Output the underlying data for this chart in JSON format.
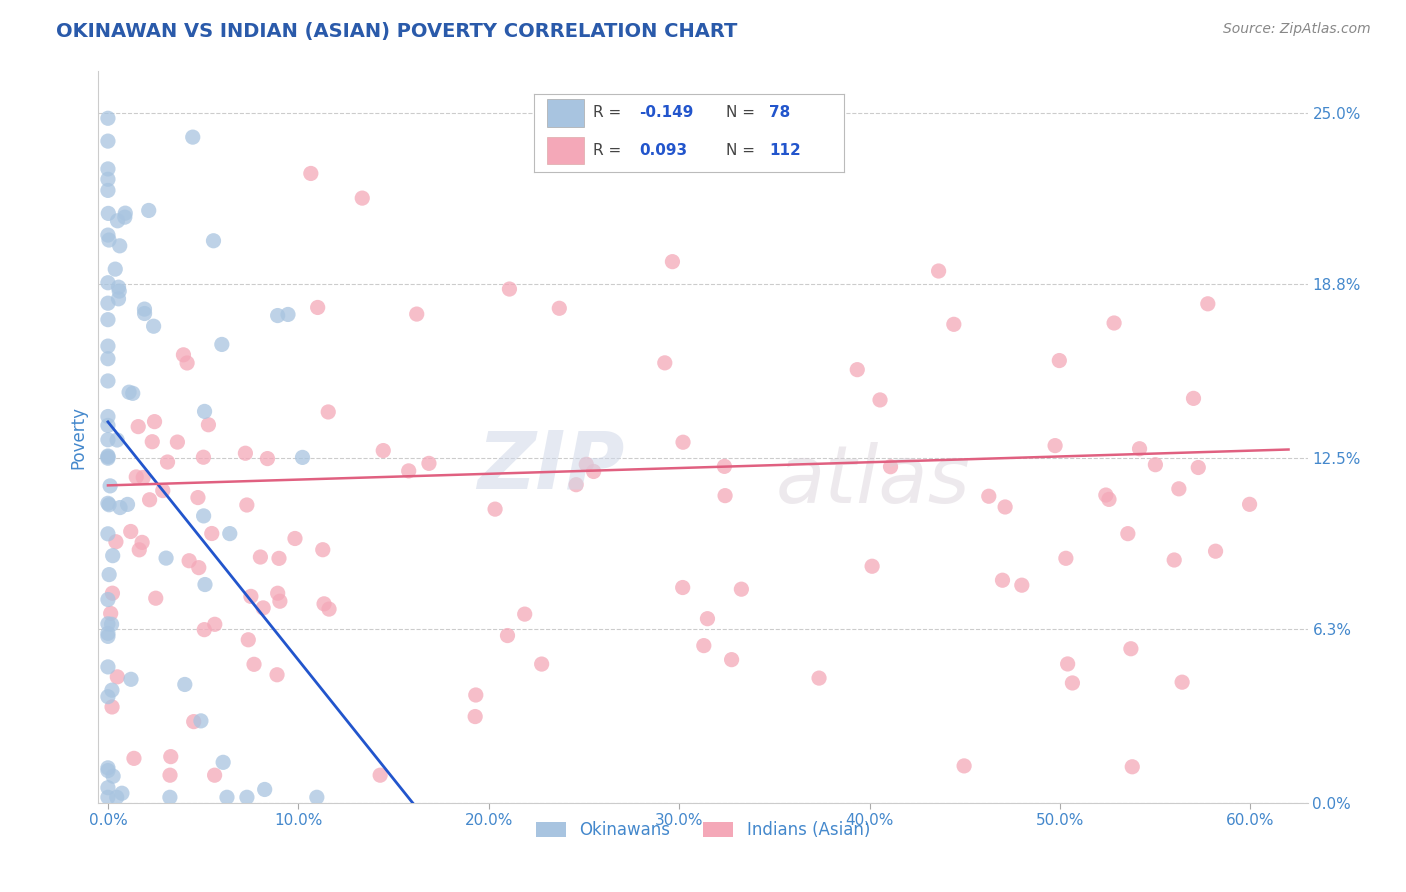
{
  "title": "OKINAWAN VS INDIAN (ASIAN) POVERTY CORRELATION CHART",
  "source": "Source: ZipAtlas.com",
  "xlabel_ticks": [
    "0.0%",
    "10.0%",
    "20.0%",
    "30.0%",
    "40.0%",
    "50.0%",
    "60.0%"
  ],
  "xlabel_vals": [
    0.0,
    0.1,
    0.2,
    0.3,
    0.4,
    0.5,
    0.6
  ],
  "ylabel": "Poverty",
  "ylabel_ticks": [
    "0.0%",
    "6.3%",
    "12.5%",
    "18.8%",
    "25.0%"
  ],
  "ylabel_vals": [
    0.0,
    0.063,
    0.125,
    0.188,
    0.25
  ],
  "ylim": [
    0.0,
    0.265
  ],
  "xlim": [
    -0.005,
    0.63
  ],
  "r_okinawan": -0.149,
  "n_okinawan": 78,
  "r_indian": 0.093,
  "n_indian": 112,
  "okinawan_color": "#a8c4e0",
  "indian_color": "#f4a8b8",
  "trend_okinawan_color": "#2255cc",
  "trend_indian_color": "#e06080",
  "title_color": "#2a5aaa",
  "axis_label_color": "#4488cc",
  "grid_color": "#cccccc",
  "background_color": "#ffffff",
  "legend_r_color": "#2255cc",
  "legend_n_color": "#2255cc"
}
